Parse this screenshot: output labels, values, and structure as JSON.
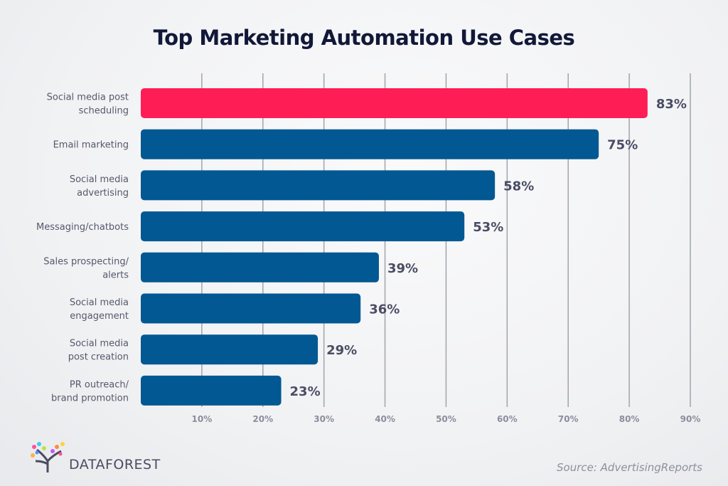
{
  "chart_data": {
    "type": "bar",
    "orientation": "horizontal",
    "title": "Top Marketing Automation Use Cases",
    "categories": [
      [
        "Social media post",
        "scheduling"
      ],
      [
        "Email marketing"
      ],
      [
        "Social media",
        "advertising"
      ],
      [
        "Messaging/chatbots"
      ],
      [
        "Sales prospecting/",
        "alerts"
      ],
      [
        "Social media",
        "engagement"
      ],
      [
        "Social media",
        "post creation"
      ],
      [
        "PR outreach/",
        "brand promotion"
      ]
    ],
    "values": [
      83,
      75,
      58,
      53,
      39,
      36,
      29,
      23
    ],
    "data_labels": [
      "83%",
      "75%",
      "58%",
      "53%",
      "39%",
      "36%",
      "29%",
      "23%"
    ],
    "xlim": [
      0,
      90
    ],
    "ticks": [
      10,
      20,
      30,
      40,
      50,
      60,
      70,
      80,
      90
    ],
    "tick_labels": [
      "10%",
      "20%",
      "30%",
      "40%",
      "50%",
      "60%",
      "70%",
      "80%",
      "90%"
    ],
    "grid": "vertical",
    "colors": {
      "highlight": "#ff1d56",
      "default": "#025892",
      "grid": "#a2a4ad"
    },
    "highlight_index": 0
  },
  "source": "Source: AdvertisingReports",
  "logo": {
    "text": "DATAFOREST"
  }
}
